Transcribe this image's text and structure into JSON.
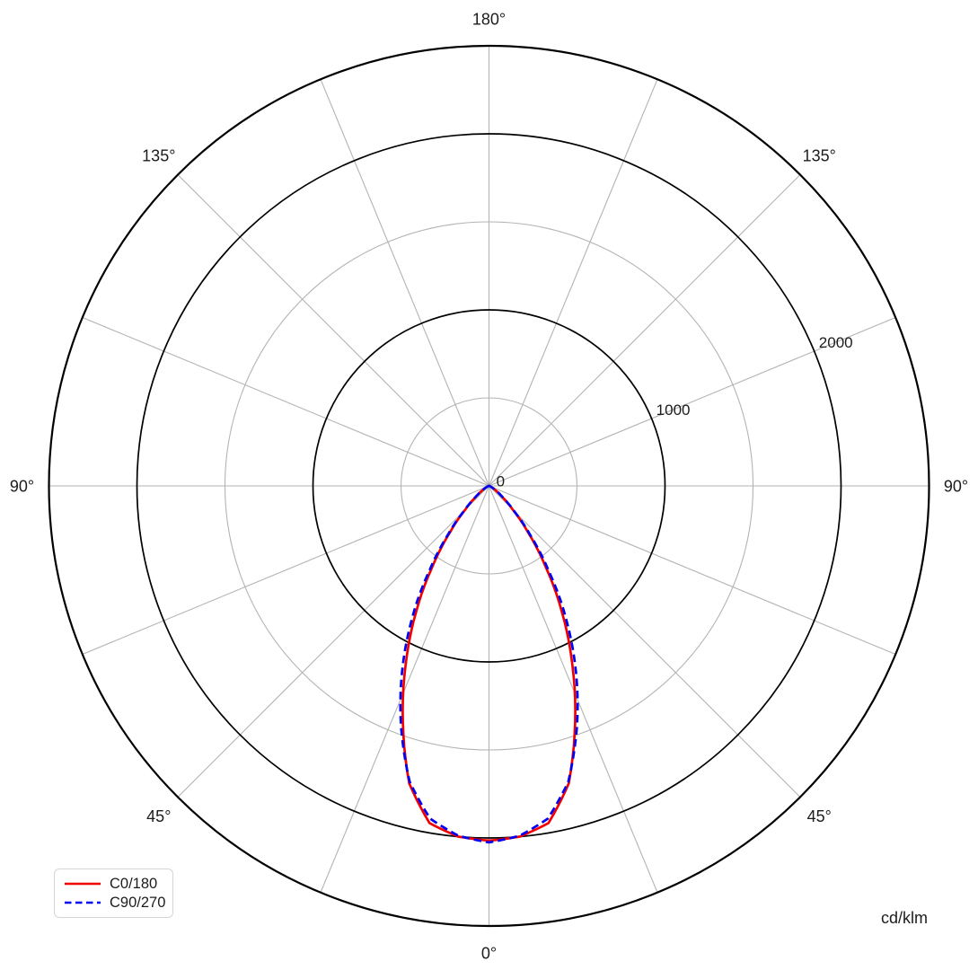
{
  "chart_data": {
    "type": "polar_photometric",
    "description": "Luminous intensity distribution polar diagram",
    "units_label": "cd/klm",
    "r_max": 2500,
    "r_grid_minor": [
      500,
      1500
    ],
    "r_grid_major": [
      1000,
      2000
    ],
    "r_tick_labels": [
      {
        "value": 0,
        "label": "0"
      },
      {
        "value": 1000,
        "label": "1000"
      },
      {
        "value": 2000,
        "label": "2000"
      }
    ],
    "theta_spoke_step_deg": 22.5,
    "theta_labels": [
      {
        "gamma": 0,
        "side": "right",
        "label": "0°"
      },
      {
        "gamma": 45,
        "side": "left",
        "label": "45°"
      },
      {
        "gamma": 45,
        "side": "right",
        "label": "45°"
      },
      {
        "gamma": 90,
        "side": "left",
        "label": "90°"
      },
      {
        "gamma": 90,
        "side": "right",
        "label": "90°"
      },
      {
        "gamma": 135,
        "side": "left",
        "label": "135°"
      },
      {
        "gamma": 135,
        "side": "right",
        "label": "135°"
      },
      {
        "gamma": 180,
        "side": "right",
        "label": "180°"
      }
    ],
    "series": [
      {
        "name": "C0/180",
        "color": "#f20000",
        "style": "solid",
        "angles_deg": [
          0,
          5,
          10,
          15,
          20,
          25,
          30,
          35,
          40,
          45,
          50,
          55,
          60,
          65,
          70,
          75,
          80,
          85,
          90
        ],
        "values": [
          2015,
          2000,
          1945,
          1750,
          1430,
          1120,
          830,
          560,
          345,
          190,
          100,
          52,
          26,
          13,
          6,
          3,
          2,
          1,
          0
        ]
      },
      {
        "name": "C90/270",
        "color": "#0000f2",
        "style": "dashed",
        "angles_deg": [
          0,
          5,
          10,
          15,
          20,
          25,
          30,
          35,
          40,
          45,
          50,
          55,
          60,
          65,
          70,
          75,
          80,
          85,
          90
        ],
        "values": [
          2025,
          1995,
          1920,
          1740,
          1460,
          1170,
          880,
          595,
          365,
          200,
          105,
          55,
          27,
          13,
          6,
          3,
          2,
          1,
          0
        ]
      }
    ],
    "colors": {
      "grid_minor": "#b3b3b3",
      "grid_major": "#000000",
      "spine": "#000000",
      "text": "#1c1c1c"
    }
  }
}
